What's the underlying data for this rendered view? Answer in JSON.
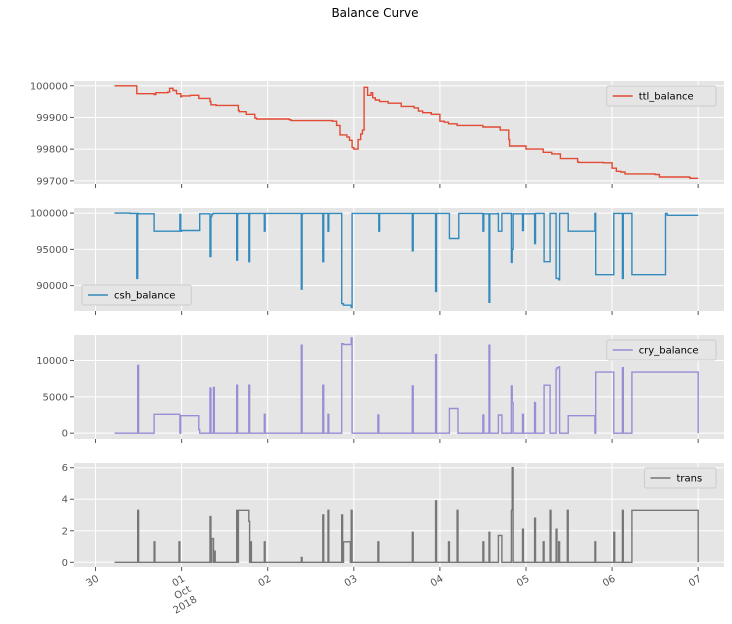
{
  "chart_data": {
    "type": "line",
    "title": "Balance Curve",
    "x_start": "2018-10-01",
    "x_ticks": [
      {
        "label": "30",
        "day": -1
      },
      {
        "label": "01\nOct\n2018",
        "day": 0
      },
      {
        "label": "02",
        "day": 1
      },
      {
        "label": "03",
        "day": 2
      },
      {
        "label": "04",
        "day": 3
      },
      {
        "label": "05",
        "day": 4
      },
      {
        "label": "06",
        "day": 5
      },
      {
        "label": "07",
        "day": 6
      }
    ],
    "xlim": [
      -1.25,
      6.3
    ],
    "grid": true,
    "panels": [
      {
        "series": "ttl_balance",
        "color": "#e24a33",
        "legend_loc": "upper right",
        "ylim": [
          99690,
          100015
        ],
        "yticks": [
          99700,
          99800,
          99900,
          100000
        ],
        "x": [
          -0.78,
          -0.53,
          -0.52,
          -0.32,
          -0.3,
          -0.16,
          -0.14,
          -0.1,
          -0.06,
          -0.01,
          0.0,
          0.1,
          0.2,
          0.33,
          0.34,
          0.4,
          0.66,
          0.67,
          0.75,
          0.85,
          0.87,
          1.25,
          1.27,
          1.75,
          1.8,
          1.84,
          1.92,
          1.95,
          1.98,
          2.0,
          2.05,
          2.08,
          2.1,
          2.12,
          2.16,
          2.2,
          2.22,
          2.25,
          2.3,
          2.4,
          2.55,
          2.7,
          2.75,
          2.8,
          2.9,
          3.0,
          3.05,
          3.1,
          3.2,
          3.5,
          3.7,
          3.8,
          3.81,
          4.0,
          4.2,
          4.3,
          4.4,
          4.6,
          4.61,
          4.9,
          5.0,
          5.05,
          5.1,
          5.15,
          5.5,
          5.55,
          5.9,
          5.91,
          6.0
        ],
        "values": [
          100000,
          100000,
          99975,
          99972,
          99978,
          99980,
          99992,
          99985,
          99975,
          99965,
          99968,
          99970,
          99960,
          99950,
          99940,
          99938,
          99922,
          99918,
          99910,
          99898,
          99895,
          99893,
          99890,
          99888,
          99875,
          99845,
          99838,
          99828,
          99805,
          99800,
          99830,
          99848,
          99860,
          99995,
          99970,
          99978,
          99962,
          99955,
          99950,
          99945,
          99935,
          99930,
          99920,
          99915,
          99910,
          99888,
          99885,
          99880,
          99875,
          99870,
          99860,
          99830,
          99810,
          99800,
          99790,
          99785,
          99770,
          99760,
          99758,
          99757,
          99740,
          99730,
          99728,
          99722,
          99720,
          99712,
          99710,
          99708,
          99708
        ]
      },
      {
        "series": "csh_balance",
        "color": "#348abd",
        "legend_loc": "lower left",
        "ylim": [
          86500,
          100700
        ],
        "yticks": [
          90000,
          95000,
          100000
        ],
        "x": [
          -0.78,
          -0.6,
          -0.52,
          -0.51,
          -0.5,
          -0.32,
          -0.31,
          -0.03,
          -0.02,
          -0.01,
          0.0,
          0.01,
          0.2,
          0.21,
          0.33,
          0.34,
          0.35,
          0.36,
          0.37,
          0.39,
          0.4,
          0.64,
          0.65,
          0.66,
          0.78,
          0.79,
          0.8,
          0.81,
          0.96,
          0.97,
          1.39,
          1.4,
          1.41,
          1.64,
          1.65,
          1.66,
          1.7,
          1.71,
          1.86,
          1.87,
          1.88,
          1.96,
          1.97,
          1.98,
          2.1,
          2.28,
          2.29,
          2.3,
          2.68,
          2.69,
          2.95,
          2.96,
          3.1,
          3.11,
          3.2,
          3.22,
          3.5,
          3.51,
          3.57,
          3.58,
          3.67,
          3.68,
          3.72,
          3.73,
          3.83,
          3.84,
          3.85,
          3.96,
          3.97,
          4.1,
          4.11,
          4.2,
          4.21,
          4.28,
          4.29,
          4.35,
          4.36,
          4.38,
          4.39,
          4.48,
          4.49,
          4.8,
          4.81,
          5.02,
          5.03,
          5.12,
          5.13,
          5.22,
          5.23,
          5.62,
          5.63,
          5.64,
          6.0
        ],
        "values": [
          100000,
          99950,
          91000,
          99950,
          99900,
          97500,
          97500,
          97500,
          99800,
          97500,
          97600,
          97600,
          97600,
          99900,
          94000,
          99500,
          99800,
          99900,
          99950,
          99950,
          99950,
          93500,
          99900,
          99950,
          93300,
          99950,
          99950,
          99950,
          97500,
          99950,
          89500,
          99900,
          99950,
          93300,
          99950,
          99950,
          97500,
          99950,
          87500,
          87500,
          87300,
          87300,
          87000,
          99950,
          99950,
          99950,
          97500,
          99950,
          94800,
          99950,
          89200,
          99950,
          99950,
          96500,
          96500,
          99950,
          97500,
          99900,
          87700,
          99900,
          99950,
          97500,
          99950,
          99950,
          93200,
          95000,
          99900,
          97600,
          99900,
          95800,
          99950,
          99950,
          93300,
          99950,
          99950,
          91000,
          91000,
          90800,
          99950,
          99950,
          97500,
          99950,
          91500,
          99950,
          99950,
          91000,
          99950,
          99950,
          91500,
          99950,
          99950,
          99700,
          99700
        ]
      },
      {
        "series": "cry_balance",
        "color": "#988ed5",
        "legend_loc": "upper right",
        "ylim": [
          -800,
          13500
        ],
        "yticks": [
          0,
          5000,
          10000
        ],
        "x": [
          -0.78,
          -0.52,
          -0.51,
          -0.5,
          -0.32,
          -0.31,
          -0.03,
          -0.02,
          -0.01,
          0.0,
          0.2,
          0.21,
          0.33,
          0.34,
          0.37,
          0.38,
          0.64,
          0.65,
          0.66,
          0.78,
          0.79,
          0.8,
          0.81,
          0.96,
          0.97,
          1.39,
          1.4,
          1.64,
          1.65,
          1.7,
          1.71,
          1.86,
          1.87,
          1.88,
          1.96,
          1.97,
          1.98,
          2.28,
          2.29,
          2.3,
          2.68,
          2.69,
          2.95,
          2.96,
          3.1,
          3.11,
          3.2,
          3.21,
          3.5,
          3.51,
          3.57,
          3.58,
          3.67,
          3.68,
          3.72,
          3.73,
          3.83,
          3.84,
          3.85,
          3.96,
          3.97,
          4.1,
          4.11,
          4.2,
          4.21,
          4.28,
          4.29,
          4.35,
          4.36,
          4.38,
          4.39,
          4.48,
          4.49,
          4.8,
          4.81,
          5.02,
          5.03,
          5.12,
          5.13,
          5.22,
          5.23,
          6.0
        ],
        "values": [
          0,
          0,
          9300,
          0,
          2600,
          2600,
          2600,
          0,
          2400,
          2400,
          500,
          0,
          6200,
          0,
          6300,
          0,
          6600,
          0,
          0,
          6600,
          0,
          0,
          0,
          2600,
          0,
          12100,
          0,
          6600,
          0,
          2600,
          0,
          12300,
          12300,
          12200,
          12200,
          13100,
          0,
          2500,
          0,
          0,
          6500,
          0,
          10800,
          0,
          0,
          3400,
          3400,
          0,
          2500,
          0,
          12100,
          0,
          0,
          2500,
          0,
          0,
          6500,
          4200,
          0,
          2600,
          0,
          4200,
          0,
          0,
          6600,
          0,
          0,
          8800,
          9000,
          9100,
          0,
          0,
          2400,
          0,
          8400,
          0,
          0,
          9000,
          0,
          0,
          8400,
          0
        ]
      },
      {
        "series": "trans",
        "color": "#777777",
        "legend_loc": "upper right",
        "ylim": [
          -0.3,
          6.3
        ],
        "yticks": [
          0,
          2,
          4,
          6
        ],
        "x": [
          -0.78,
          -0.52,
          -0.51,
          -0.5,
          -0.32,
          -0.31,
          -0.03,
          -0.02,
          -0.01,
          0.0,
          0.33,
          0.34,
          0.35,
          0.37,
          0.38,
          0.39,
          0.64,
          0.65,
          0.66,
          0.78,
          0.79,
          0.8,
          0.81,
          0.96,
          0.97,
          1.39,
          1.4,
          1.64,
          1.65,
          1.7,
          1.71,
          1.86,
          1.87,
          1.88,
          1.96,
          1.97,
          1.98,
          2.28,
          2.29,
          2.3,
          2.68,
          2.69,
          2.95,
          2.96,
          3.1,
          3.11,
          3.2,
          3.21,
          3.5,
          3.51,
          3.57,
          3.58,
          3.67,
          3.68,
          3.72,
          3.73,
          3.83,
          3.84,
          3.85,
          3.96,
          3.97,
          4.1,
          4.11,
          4.2,
          4.21,
          4.28,
          4.29,
          4.35,
          4.36,
          4.38,
          4.39,
          4.48,
          4.49,
          4.8,
          4.81,
          5.02,
          5.03,
          5.12,
          5.13,
          5.22,
          5.23,
          6.0
        ],
        "values": [
          0,
          0,
          3.3,
          0,
          1.3,
          0,
          1.3,
          0,
          0,
          0,
          2.9,
          0,
          1.5,
          0,
          0.7,
          0,
          3.3,
          0,
          3.3,
          2.6,
          0,
          1.3,
          0,
          1.3,
          0,
          0.3,
          0,
          3.0,
          0,
          3.3,
          0,
          3.0,
          0,
          1.3,
          0,
          3.3,
          0,
          1.3,
          0,
          0,
          1.9,
          0,
          3.9,
          0,
          1.3,
          0,
          3.3,
          0,
          1.3,
          0,
          1.9,
          0,
          0,
          1.7,
          0,
          0,
          3.3,
          6.0,
          0,
          2.1,
          0,
          2.8,
          0,
          1.3,
          0,
          3.3,
          0,
          2.1,
          0,
          1.3,
          0,
          3.3,
          0,
          1.3,
          0,
          1.9,
          0,
          3.3,
          0,
          0,
          3.3,
          0
        ]
      }
    ]
  }
}
